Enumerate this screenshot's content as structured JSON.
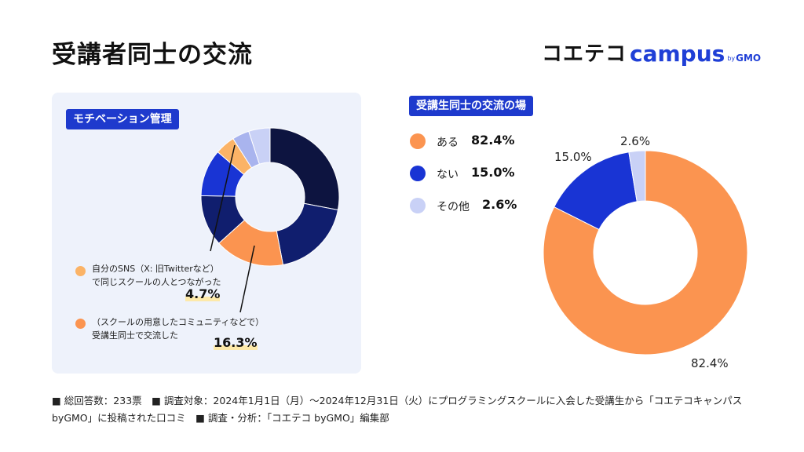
{
  "title": "受講者同士の交流",
  "logo": {
    "jp": "コエテコ",
    "campus": "campus",
    "by": "by",
    "gmo": "GMO"
  },
  "colors": {
    "navy": "#0d1440",
    "darkblue": "#101e6e",
    "blue": "#1934d4",
    "orange": "#fb9450",
    "lightorange": "#fbb366",
    "lavender": "#a9b4ee",
    "lightlavender": "#c9d1f6",
    "badge": "#1e3acd"
  },
  "left_panel": {
    "badge": "モチベーション管理",
    "annotations": [
      {
        "line1": "自分のSNS（X: 旧Twitterなど）",
        "line2": "で同じスクールの人とつながった",
        "value": "4.7%"
      },
      {
        "line1": "（スクールの用意したコミュニティなどで）",
        "line2": "受講生同士で交流した",
        "value": "16.3%"
      }
    ]
  },
  "right_panel": {
    "badge": "受講生同士の交流の場",
    "legend": [
      {
        "label": "ある",
        "value": "82.4%"
      },
      {
        "label": "ない",
        "value": "15.0%"
      },
      {
        "label": "その他",
        "value": "2.6%"
      }
    ],
    "slice_labels": [
      "82.4%",
      "15.0%",
      "2.6%"
    ]
  },
  "chart_data": [
    {
      "type": "pie",
      "donut": true,
      "title": "モチベーション管理",
      "slices": [
        {
          "value": 28.0,
          "color": "#0d1440"
        },
        {
          "value": 19.0,
          "color": "#101e6e"
        },
        {
          "value": 16.3,
          "color": "#fb9450"
        },
        {
          "value": 12.0,
          "color": "#101e6e"
        },
        {
          "value": 11.0,
          "color": "#1934d4"
        },
        {
          "value": 4.7,
          "color": "#fbb366"
        },
        {
          "value": 4.0,
          "color": "#a9b4ee"
        },
        {
          "value": 5.0,
          "color": "#c9d1f6"
        }
      ]
    },
    {
      "type": "pie",
      "donut": true,
      "title": "受講生同士の交流の場",
      "slices": [
        {
          "label": "ある",
          "value": 82.4,
          "color": "#fb9450"
        },
        {
          "label": "ない",
          "value": 15.0,
          "color": "#1934d4"
        },
        {
          "label": "その他",
          "value": 2.6,
          "color": "#c9d1f6"
        }
      ]
    }
  ],
  "footnote": "■ 総回答数：233票　■ 調査対象：2024年1月1日（月）〜2024年12月31日（火）にプログラミングスクールに入会した受講生から「コエテコキャンパス byGMO」に投稿された口コミ　■ 調査・分析：「コエテコ byGMO」編集部"
}
